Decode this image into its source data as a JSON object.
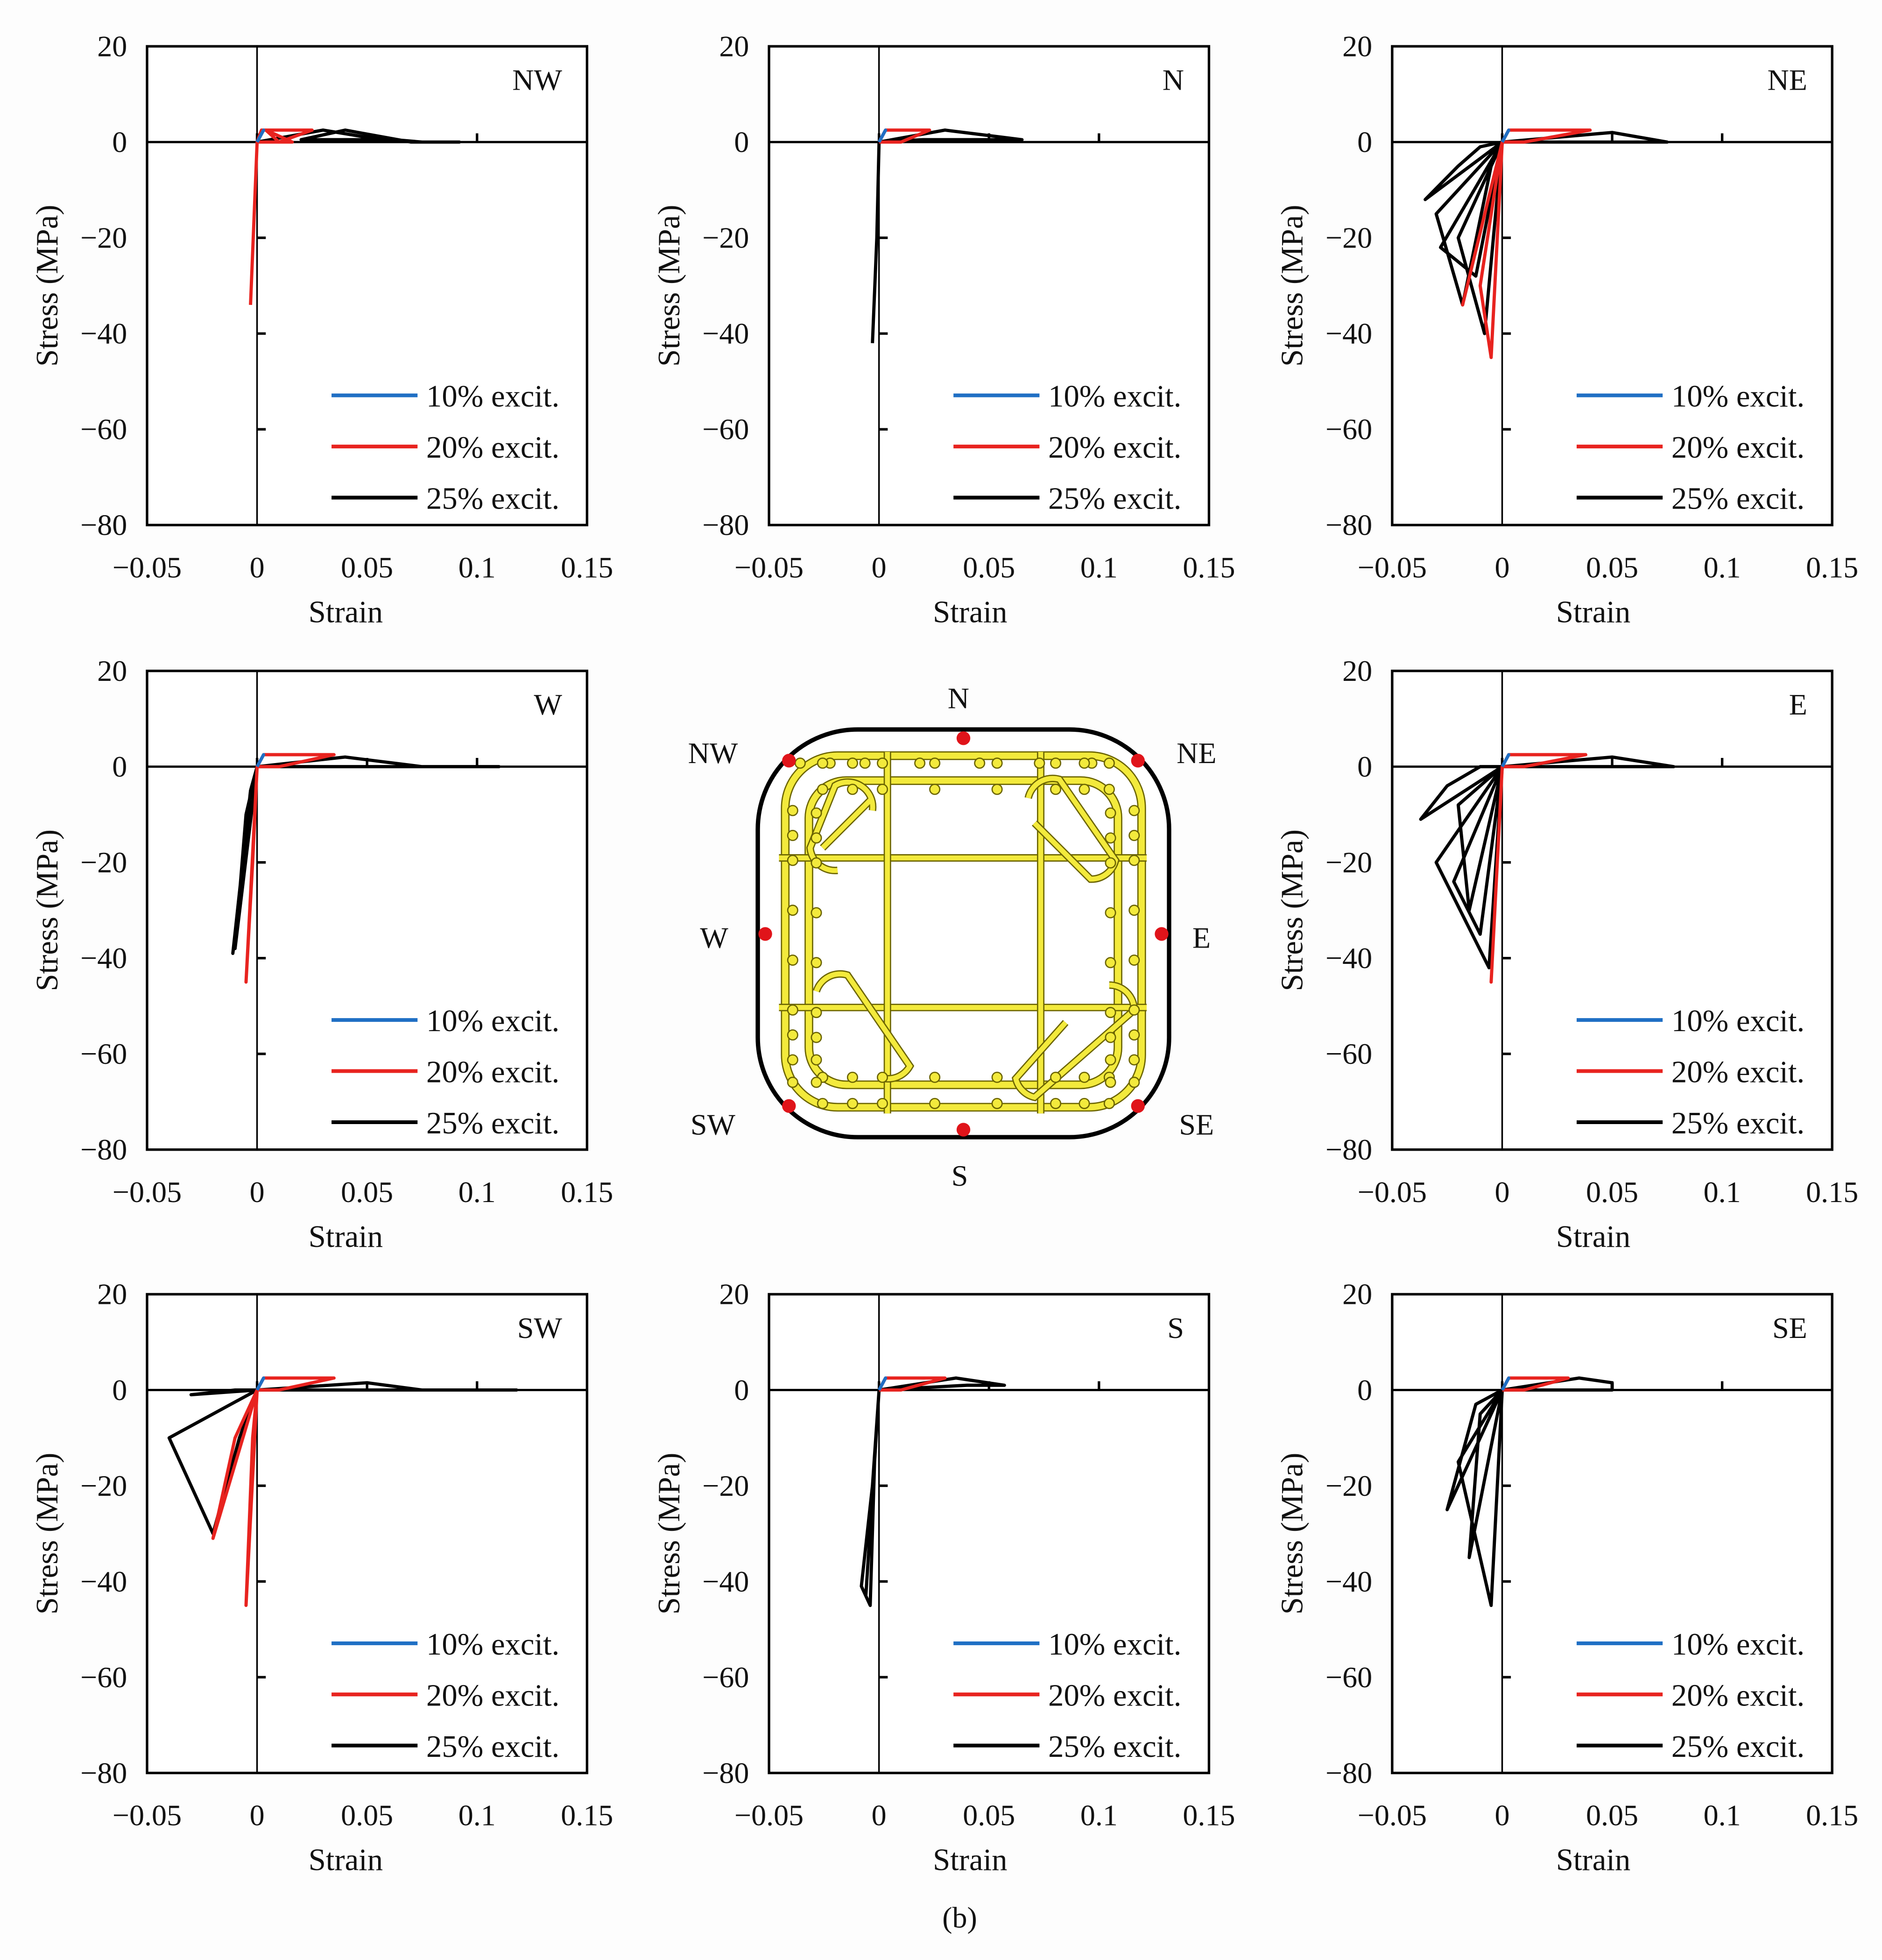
{
  "caption": "(b)",
  "colors": {
    "s10": "#1f6fc4",
    "s20": "#e8231f",
    "s25": "#000000",
    "rebar": "#f3ea3c",
    "gauge": "#e0141a"
  },
  "diagram": {
    "labels": {
      "N": "N",
      "NE": "NE",
      "E": "E",
      "SE": "SE",
      "S": "S",
      "SW": "SW",
      "W": "W",
      "NW": "NW"
    }
  },
  "chart_data": [
    {
      "type": "line",
      "title": "NW",
      "xlabel": "Strain",
      "ylabel": "Stress (MPa)",
      "xlim": [
        -0.05,
        0.15
      ],
      "ylim": [
        -80,
        20
      ],
      "xticks": [
        "−0.05",
        "0",
        "0.05",
        "0.1",
        "0.15"
      ],
      "yticks": [
        "20",
        "0",
        "−20",
        "−40",
        "−60",
        "−80"
      ],
      "legend": "bottom-right",
      "series": [
        {
          "name": "10% excit.",
          "points": [
            [
              0,
              0
            ],
            [
              0.003,
              2.5
            ],
            [
              0,
              0
            ]
          ]
        },
        {
          "name": "20% excit.",
          "points": [
            [
              0,
              0
            ],
            [
              0.002,
              2.5
            ],
            [
              0.025,
              2.5
            ],
            [
              0.01,
              0
            ],
            [
              0.004,
              2.5
            ],
            [
              0.016,
              0
            ],
            [
              0,
              0
            ],
            [
              -0.003,
              -34
            ]
          ]
        },
        {
          "name": "25% excit.",
          "points": [
            [
              0,
              0
            ],
            [
              0.03,
              2.5
            ],
            [
              0.05,
              1
            ],
            [
              0.075,
              0
            ],
            [
              0.092,
              0
            ],
            [
              0.07,
              0
            ],
            [
              0.04,
              2.5
            ],
            [
              0.02,
              0.5
            ],
            [
              0.06,
              0.5
            ],
            [
              0.075,
              0
            ]
          ]
        }
      ]
    },
    {
      "type": "line",
      "title": "N",
      "xlabel": "Strain",
      "ylabel": "Stress (MPa)",
      "xlim": [
        -0.05,
        0.15
      ],
      "ylim": [
        -80,
        20
      ],
      "xticks": [
        "−0.05",
        "0",
        "0.05",
        "0.1",
        "0.15"
      ],
      "yticks": [
        "20",
        "0",
        "−20",
        "−40",
        "−60",
        "−80"
      ],
      "legend": "bottom-right",
      "series": [
        {
          "name": "10% excit.",
          "points": [
            [
              0,
              0
            ],
            [
              0.003,
              2.5
            ],
            [
              0,
              0
            ]
          ]
        },
        {
          "name": "20% excit.",
          "points": [
            [
              0,
              0
            ],
            [
              0.003,
              2.5
            ],
            [
              0.023,
              2.5
            ],
            [
              0.01,
              0
            ],
            [
              0,
              0
            ]
          ]
        },
        {
          "name": "25% excit.",
          "points": [
            [
              0,
              0
            ],
            [
              0.03,
              2.5
            ],
            [
              0.065,
              0.5
            ],
            [
              0.04,
              0.5
            ],
            [
              0.02,
              0.5
            ],
            [
              0,
              0
            ],
            [
              -0.001,
              -20
            ],
            [
              -0.003,
              -42
            ]
          ]
        }
      ]
    },
    {
      "type": "line",
      "title": "NE",
      "xlabel": "Strain",
      "ylabel": "Stress (MPa)",
      "xlim": [
        -0.05,
        0.15
      ],
      "ylim": [
        -80,
        20
      ],
      "xticks": [
        "−0.05",
        "0",
        "0.05",
        "0.1",
        "0.15"
      ],
      "yticks": [
        "20",
        "0",
        "−20",
        "−40",
        "−60",
        "−80"
      ],
      "legend": "bottom-right",
      "series": [
        {
          "name": "10% excit.",
          "points": [
            [
              0,
              0
            ],
            [
              0.003,
              2.5
            ],
            [
              0,
              0
            ]
          ]
        },
        {
          "name": "20% excit.",
          "points": [
            [
              0,
              0
            ],
            [
              0.003,
              2.5
            ],
            [
              0.04,
              2.5
            ],
            [
              0.01,
              0
            ],
            [
              0,
              0
            ],
            [
              -0.01,
              -30
            ],
            [
              -0.005,
              -45
            ],
            [
              0,
              0
            ],
            [
              -0.018,
              -34
            ],
            [
              0,
              0
            ]
          ]
        },
        {
          "name": "25% excit.",
          "points": [
            [
              0,
              0
            ],
            [
              0.05,
              2
            ],
            [
              0.075,
              0
            ],
            [
              0.02,
              0
            ],
            [
              0,
              0
            ],
            [
              -0.035,
              -12
            ],
            [
              -0.02,
              -5
            ],
            [
              -0.01,
              -1
            ],
            [
              0,
              0
            ],
            [
              -0.03,
              -15
            ],
            [
              -0.018,
              -34
            ],
            [
              -0.005,
              -5
            ],
            [
              0,
              0
            ],
            [
              -0.02,
              -20
            ],
            [
              -0.008,
              -40
            ],
            [
              0,
              0
            ],
            [
              -0.028,
              -22
            ],
            [
              -0.012,
              -28
            ],
            [
              0,
              0
            ]
          ]
        }
      ]
    },
    {
      "type": "line",
      "title": "W",
      "xlabel": "Strain",
      "ylabel": "Stress (MPa)",
      "xlim": [
        -0.05,
        0.15
      ],
      "ylim": [
        -80,
        20
      ],
      "xticks": [
        "−0.05",
        "0",
        "0.05",
        "0.1",
        "0.15"
      ],
      "yticks": [
        "20",
        "0",
        "−20",
        "−40",
        "−60",
        "−80"
      ],
      "legend": "bottom-right",
      "series": [
        {
          "name": "10% excit.",
          "points": [
            [
              0,
              0
            ],
            [
              0.003,
              2.5
            ],
            [
              0,
              0
            ]
          ]
        },
        {
          "name": "20% excit.",
          "points": [
            [
              0,
              0
            ],
            [
              0.003,
              2.5
            ],
            [
              0.035,
              2.5
            ],
            [
              0.01,
              0
            ],
            [
              0,
              0
            ],
            [
              -0.005,
              -45
            ],
            [
              -0.002,
              -20
            ],
            [
              0,
              0
            ]
          ]
        },
        {
          "name": "25% excit.",
          "points": [
            [
              0,
              0
            ],
            [
              0.04,
              2
            ],
            [
              0.075,
              0
            ],
            [
              0.11,
              0
            ],
            [
              0.05,
              0
            ],
            [
              0,
              0
            ],
            [
              -0.01,
              -38
            ],
            [
              -0.005,
              -10
            ],
            [
              0,
              0
            ],
            [
              -0.011,
              -39
            ],
            [
              -0.003,
              -5
            ],
            [
              0,
              0
            ]
          ]
        }
      ]
    },
    {
      "type": "line",
      "title": "E",
      "xlabel": "Strain",
      "ylabel": "Stress (MPa)",
      "xlim": [
        -0.05,
        0.15
      ],
      "ylim": [
        -80,
        20
      ],
      "xticks": [
        "−0.05",
        "0",
        "0.05",
        "0.1",
        "0.15"
      ],
      "yticks": [
        "20",
        "0",
        "−20",
        "−40",
        "−60",
        "−80"
      ],
      "legend": "bottom-right",
      "series": [
        {
          "name": "10% excit.",
          "points": [
            [
              0,
              0
            ],
            [
              0.003,
              2.5
            ],
            [
              0,
              0
            ]
          ]
        },
        {
          "name": "20% excit.",
          "points": [
            [
              0,
              0
            ],
            [
              0.003,
              2.5
            ],
            [
              0.038,
              2.5
            ],
            [
              0.01,
              0
            ],
            [
              0,
              0
            ],
            [
              -0.005,
              -45
            ],
            [
              0,
              0
            ]
          ]
        },
        {
          "name": "25% excit.",
          "points": [
            [
              0,
              0
            ],
            [
              0.05,
              2
            ],
            [
              0.078,
              0
            ],
            [
              0.02,
              0
            ],
            [
              0,
              0
            ],
            [
              -0.037,
              -11
            ],
            [
              -0.025,
              -4
            ],
            [
              -0.01,
              0
            ],
            [
              0,
              0
            ],
            [
              -0.03,
              -20
            ],
            [
              -0.006,
              -42
            ],
            [
              0,
              0
            ],
            [
              -0.022,
              -24
            ],
            [
              -0.01,
              -35
            ],
            [
              0,
              0
            ],
            [
              -0.02,
              -8
            ],
            [
              -0.015,
              -30
            ],
            [
              0,
              0
            ]
          ]
        }
      ]
    },
    {
      "type": "line",
      "title": "SW",
      "xlabel": "Strain",
      "ylabel": "Stress (MPa)",
      "xlim": [
        -0.05,
        0.15
      ],
      "ylim": [
        -80,
        20
      ],
      "xticks": [
        "−0.05",
        "0",
        "0.05",
        "0.1",
        "0.15"
      ],
      "yticks": [
        "20",
        "0",
        "−20",
        "−40",
        "−60",
        "−80"
      ],
      "legend": "bottom-right",
      "series": [
        {
          "name": "10% excit.",
          "points": [
            [
              0,
              0
            ],
            [
              0.003,
              2.5
            ],
            [
              0,
              0
            ]
          ]
        },
        {
          "name": "20% excit.",
          "points": [
            [
              0,
              0
            ],
            [
              0.003,
              2.5
            ],
            [
              0.035,
              2.5
            ],
            [
              0.01,
              0
            ],
            [
              0,
              0
            ],
            [
              -0.005,
              -45
            ],
            [
              -0.002,
              -10
            ],
            [
              0,
              0
            ],
            [
              -0.02,
              -31
            ],
            [
              -0.01,
              -10
            ],
            [
              0,
              0
            ]
          ]
        },
        {
          "name": "25% excit.",
          "points": [
            [
              0,
              0
            ],
            [
              0.05,
              1.5
            ],
            [
              0.075,
              0
            ],
            [
              0.118,
              0
            ],
            [
              0.05,
              0
            ],
            [
              0,
              0
            ],
            [
              -0.04,
              -10
            ],
            [
              -0.02,
              -30
            ],
            [
              -0.008,
              -10
            ],
            [
              0,
              0
            ],
            [
              -0.03,
              -1
            ],
            [
              -0.01,
              0
            ],
            [
              0,
              0
            ]
          ]
        }
      ]
    },
    {
      "type": "line",
      "title": "S",
      "xlabel": "Strain",
      "ylabel": "Stress (MPa)",
      "xlim": [
        -0.05,
        0.15
      ],
      "ylim": [
        -80,
        20
      ],
      "xticks": [
        "−0.05",
        "0",
        "0.05",
        "0.1",
        "0.15"
      ],
      "yticks": [
        "20",
        "0",
        "−20",
        "−40",
        "−60",
        "−80"
      ],
      "legend": "bottom-right",
      "series": [
        {
          "name": "10% excit.",
          "points": [
            [
              0,
              0
            ],
            [
              0.003,
              2.5
            ],
            [
              0,
              0
            ]
          ]
        },
        {
          "name": "20% excit.",
          "points": [
            [
              0,
              0
            ],
            [
              0.003,
              2.5
            ],
            [
              0.03,
              2.5
            ],
            [
              0.01,
              0
            ],
            [
              0,
              0
            ]
          ]
        },
        {
          "name": "25% excit.",
          "points": [
            [
              0,
              0
            ],
            [
              0.035,
              2.5
            ],
            [
              0.057,
              1
            ],
            [
              0.04,
              1
            ],
            [
              0.02,
              0.5
            ],
            [
              0,
              0
            ],
            [
              -0.003,
              -20
            ],
            [
              -0.008,
              -41
            ],
            [
              -0.004,
              -45
            ],
            [
              -0.002,
              -15
            ],
            [
              0,
              0
            ],
            [
              -0.006,
              -43
            ],
            [
              0,
              0
            ]
          ]
        }
      ]
    },
    {
      "type": "line",
      "title": "SE",
      "xlabel": "Strain",
      "ylabel": "Stress (MPa)",
      "xlim": [
        -0.05,
        0.15
      ],
      "ylim": [
        -80,
        20
      ],
      "xticks": [
        "−0.05",
        "0",
        "0.05",
        "0.1",
        "0.15"
      ],
      "yticks": [
        "20",
        "0",
        "−20",
        "−40",
        "−60",
        "−80"
      ],
      "legend": "bottom-right",
      "series": [
        {
          "name": "10% excit.",
          "points": [
            [
              0,
              0
            ],
            [
              0.003,
              2.5
            ],
            [
              0,
              0
            ]
          ]
        },
        {
          "name": "20% excit.",
          "points": [
            [
              0,
              0
            ],
            [
              0.003,
              2.5
            ],
            [
              0.03,
              2.5
            ],
            [
              0.01,
              0
            ],
            [
              0,
              0
            ]
          ]
        },
        {
          "name": "25% excit.",
          "points": [
            [
              0,
              0
            ],
            [
              0.035,
              2.5
            ],
            [
              0.05,
              1.5
            ],
            [
              0.05,
              0
            ],
            [
              0.02,
              0
            ],
            [
              0,
              0
            ],
            [
              -0.025,
              -25
            ],
            [
              -0.012,
              -3
            ],
            [
              0,
              0
            ],
            [
              -0.02,
              -15
            ],
            [
              -0.005,
              -45
            ],
            [
              0,
              0
            ],
            [
              -0.015,
              -35
            ],
            [
              -0.01,
              -5
            ],
            [
              0,
              0
            ]
          ]
        }
      ]
    }
  ]
}
